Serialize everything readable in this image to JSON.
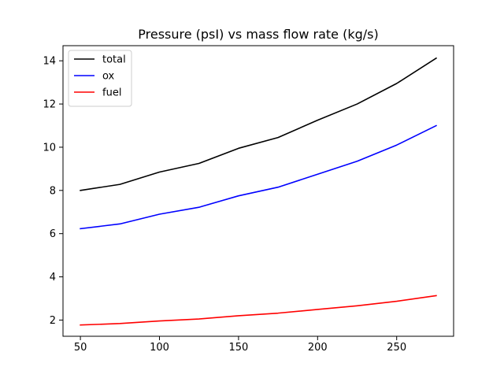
{
  "chart_data": {
    "type": "line",
    "title": "Pressure  (psI) vs mass flow rate (kg/s)",
    "xlabel": "",
    "ylabel": "",
    "x": [
      50,
      75,
      100,
      125,
      150,
      175,
      200,
      225,
      250,
      275
    ],
    "xlim": [
      39,
      286
    ],
    "ylim": [
      1.25,
      14.7
    ],
    "xticks": [
      50,
      100,
      150,
      200,
      250
    ],
    "yticks": [
      2,
      4,
      6,
      8,
      10,
      12,
      14
    ],
    "grid": false,
    "legend_position": "top-left",
    "series": [
      {
        "name": "total",
        "color": "#000000",
        "values": [
          8.0,
          8.28,
          8.85,
          9.25,
          9.95,
          10.45,
          11.25,
          12.0,
          12.95,
          14.12
        ]
      },
      {
        "name": "ox",
        "color": "#0000ff",
        "values": [
          6.23,
          6.45,
          6.9,
          7.22,
          7.75,
          8.15,
          8.75,
          9.35,
          10.1,
          11.0
        ]
      },
      {
        "name": "fuel",
        "color": "#ff0000",
        "values": [
          1.77,
          1.84,
          1.96,
          2.05,
          2.2,
          2.32,
          2.49,
          2.66,
          2.87,
          3.13
        ]
      }
    ]
  }
}
